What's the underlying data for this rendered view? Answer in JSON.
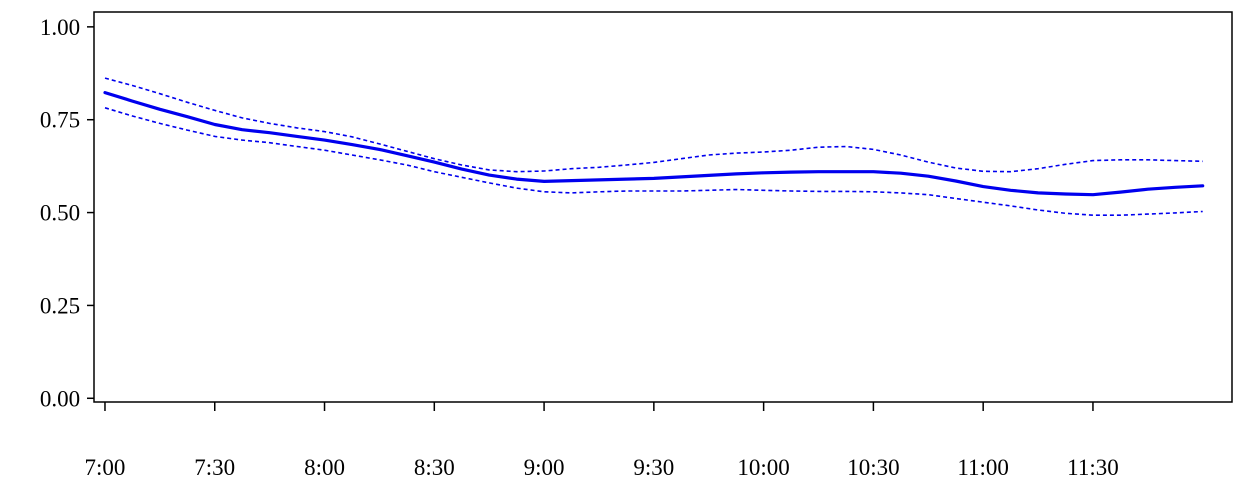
{
  "chart_data": {
    "type": "line",
    "title": "",
    "xlabel": "",
    "ylabel": "",
    "x": [
      "7:00",
      "7:07.5",
      "7:15",
      "7:22.5",
      "7:30",
      "7:37.5",
      "7:45",
      "7:52.5",
      "8:00",
      "8:07.5",
      "8:15",
      "8:22.5",
      "8:30",
      "8:37.5",
      "8:45",
      "8:52.5",
      "9:00",
      "9:07.5",
      "9:15",
      "9:22.5",
      "9:30",
      "9:37.5",
      "9:45",
      "9:52.5",
      "10:00",
      "10:07.5",
      "10:15",
      "10:22.5",
      "10:30",
      "10:37.5",
      "10:45",
      "10:52.5",
      "11:00",
      "11:07.5",
      "11:15",
      "11:22.5",
      "11:30",
      "11:37.5",
      "11:45",
      "11:52.5",
      "12:00"
    ],
    "x_minutes": [
      0,
      7.5,
      15,
      22.5,
      30,
      37.5,
      45,
      52.5,
      60,
      67.5,
      75,
      82.5,
      90,
      97.5,
      105,
      112.5,
      120,
      127.5,
      135,
      142.5,
      150,
      157.5,
      165,
      172.5,
      180,
      187.5,
      195,
      202.5,
      210,
      217.5,
      225,
      232.5,
      240,
      247.5,
      255,
      262.5,
      270,
      277.5,
      285,
      292.5,
      300
    ],
    "x_ticks": [
      "7:00",
      "7:30",
      "8:00",
      "8:30",
      "9:00",
      "9:30",
      "10:00",
      "10:30",
      "11:00",
      "11:30"
    ],
    "x_tick_minutes": [
      0,
      30,
      60,
      90,
      120,
      150,
      180,
      210,
      240,
      270
    ],
    "xlim_minutes": [
      -3,
      308
    ],
    "y_ticks": [
      "0.00",
      "0.25",
      "0.50",
      "0.75",
      "1.00"
    ],
    "y_tick_values": [
      0,
      0.25,
      0.5,
      0.75,
      1.0
    ],
    "ylim": [
      -0.01,
      1.04
    ],
    "series": [
      {
        "role": "upper",
        "style": "dashed",
        "color": "#0000ee",
        "width": 1.6,
        "values": [
          0.862,
          0.842,
          0.82,
          0.797,
          0.775,
          0.755,
          0.74,
          0.728,
          0.718,
          0.704,
          0.685,
          0.665,
          0.645,
          0.628,
          0.615,
          0.61,
          0.612,
          0.618,
          0.622,
          0.628,
          0.635,
          0.645,
          0.655,
          0.66,
          0.663,
          0.668,
          0.676,
          0.678,
          0.67,
          0.655,
          0.636,
          0.62,
          0.611,
          0.61,
          0.618,
          0.63,
          0.64,
          0.642,
          0.642,
          0.64,
          0.638
        ]
      },
      {
        "role": "mean",
        "style": "solid",
        "color": "#0000ee",
        "width": 3.2,
        "values": [
          0.823,
          0.8,
          0.778,
          0.758,
          0.737,
          0.723,
          0.715,
          0.705,
          0.695,
          0.683,
          0.67,
          0.653,
          0.636,
          0.617,
          0.601,
          0.59,
          0.584,
          0.586,
          0.588,
          0.59,
          0.592,
          0.596,
          0.6,
          0.604,
          0.607,
          0.609,
          0.61,
          0.61,
          0.61,
          0.606,
          0.598,
          0.585,
          0.57,
          0.56,
          0.553,
          0.55,
          0.548,
          0.555,
          0.563,
          0.568,
          0.572
        ]
      },
      {
        "role": "lower",
        "style": "dashed",
        "color": "#0000ee",
        "width": 1.6,
        "values": [
          0.782,
          0.76,
          0.74,
          0.722,
          0.705,
          0.695,
          0.688,
          0.678,
          0.668,
          0.655,
          0.642,
          0.628,
          0.61,
          0.595,
          0.58,
          0.566,
          0.556,
          0.553,
          0.556,
          0.558,
          0.558,
          0.558,
          0.56,
          0.562,
          0.56,
          0.558,
          0.557,
          0.557,
          0.556,
          0.553,
          0.548,
          0.538,
          0.528,
          0.518,
          0.507,
          0.498,
          0.493,
          0.493,
          0.496,
          0.499,
          0.503
        ]
      }
    ]
  }
}
